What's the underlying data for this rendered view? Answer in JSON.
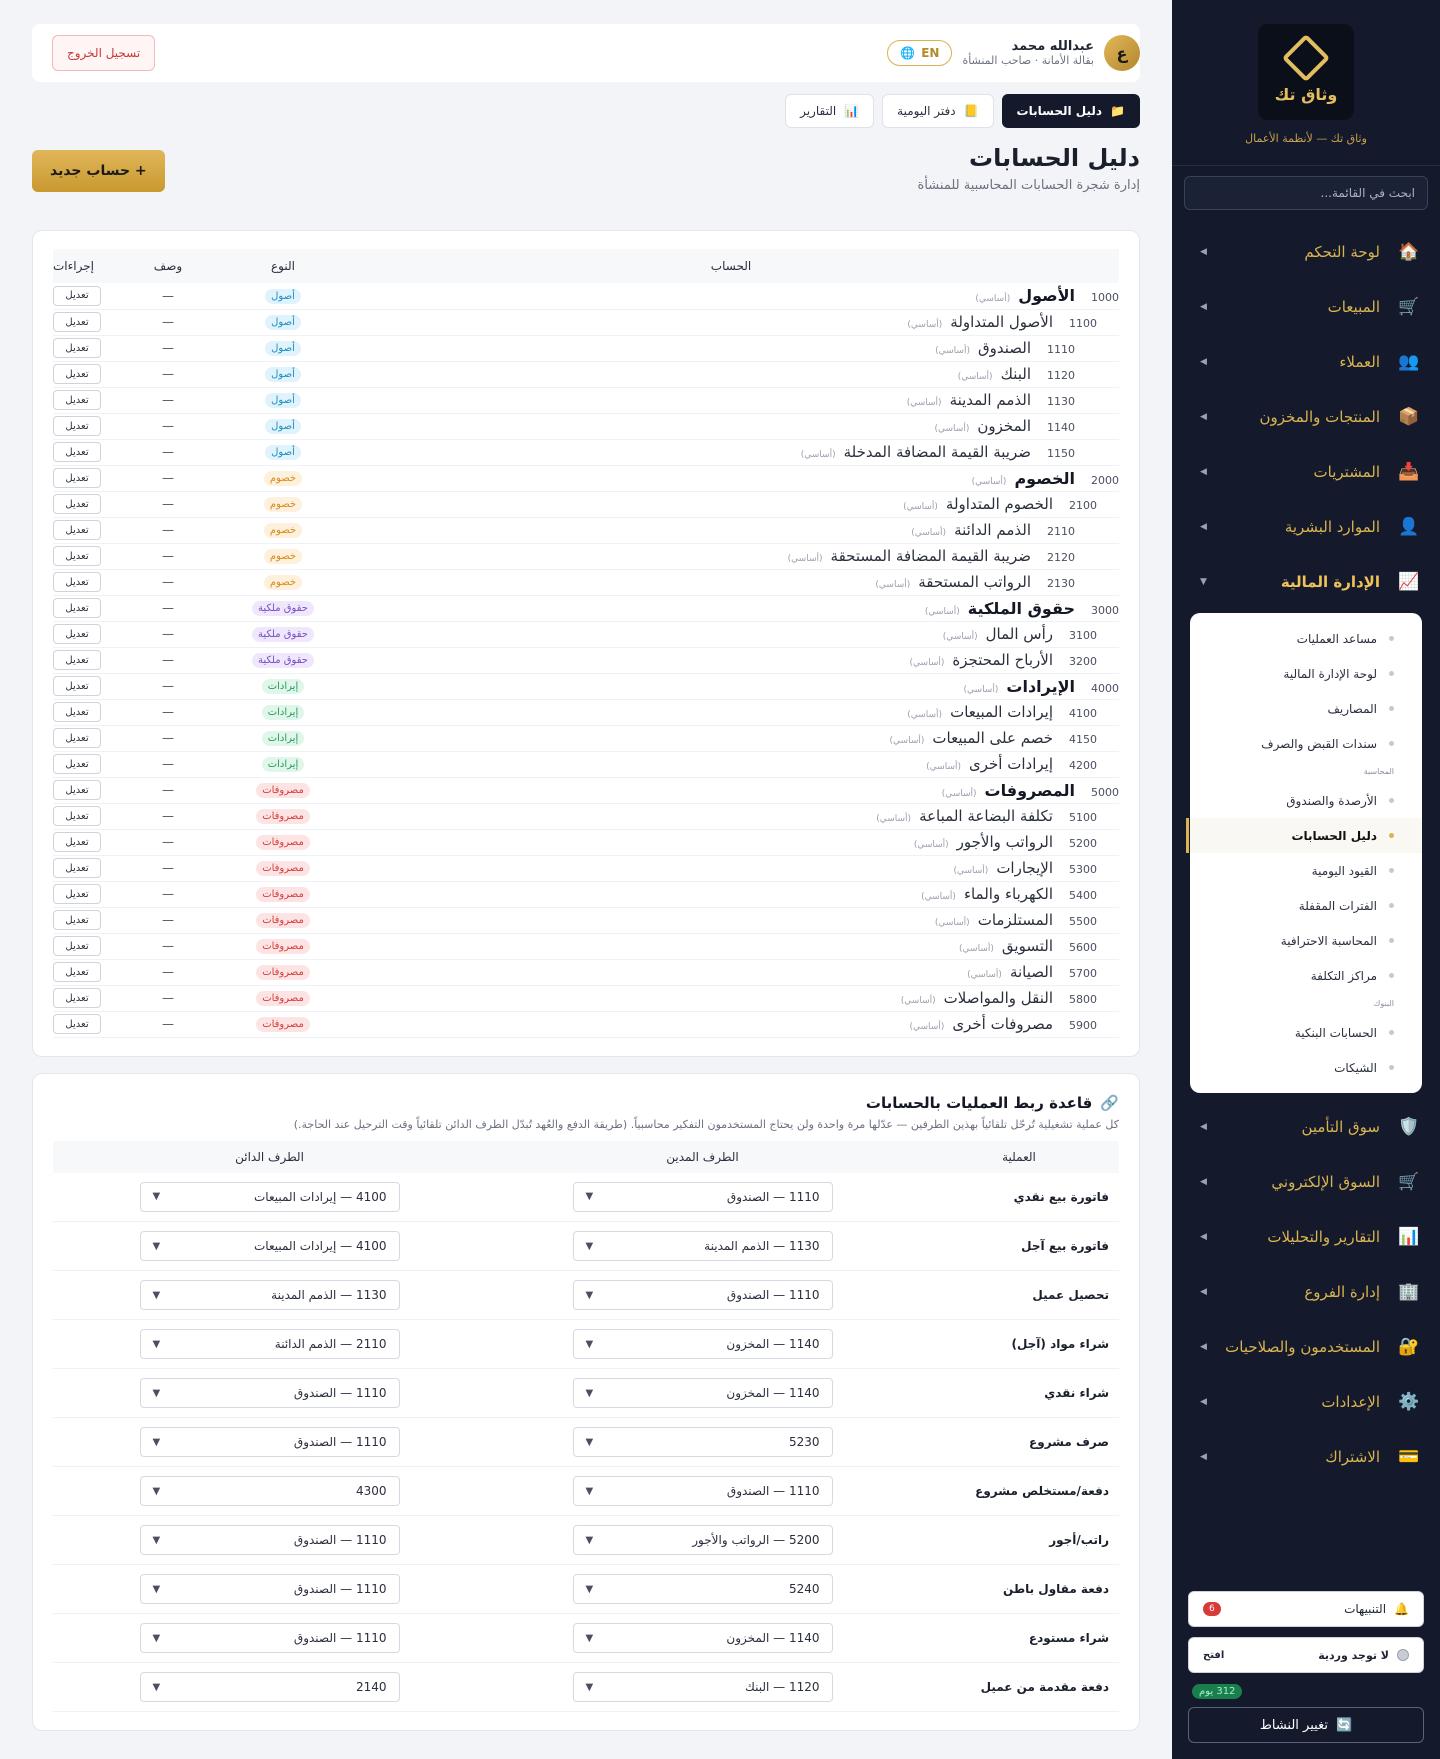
{
  "sidebar": {
    "brand_name": "وثاق تك",
    "brand_tagline": "وثاق تك — لأنظمة الأعمال",
    "search_placeholder": "ابحث في القائمة...",
    "nav_top": [
      {
        "label": "لوحة التحكم",
        "icon": "🏠"
      },
      {
        "label": "المبيعات",
        "icon": "🛒"
      },
      {
        "label": "العملاء",
        "icon": "👥"
      },
      {
        "label": "المنتجات والمخزون",
        "icon": "📦"
      },
      {
        "label": "المشتريات",
        "icon": "📥"
      },
      {
        "label": "الموارد البشرية",
        "icon": "👤"
      }
    ],
    "finance": {
      "label": "الإدارة المالية",
      "icon": "📈"
    },
    "submenu_a": [
      "مساعد العمليات",
      "لوحة الإدارة المالية",
      "المصاريف",
      "سندات القبض والصرف"
    ],
    "group_accounting": "المحاسبة",
    "submenu_b": [
      "الأرصدة والصندوق"
    ],
    "submenu_active": "دليل الحسابات",
    "submenu_c": [
      "القيود اليومية",
      "الفترات المقفلة",
      "المحاسبة الاحترافية",
      "مراكز التكلفة"
    ],
    "group_banks": "البنوك",
    "submenu_d": [
      "الحسابات البنكية",
      "الشيكات"
    ],
    "nav_bottom": [
      {
        "label": "سوق التأمين",
        "icon": "🛡️"
      },
      {
        "label": "السوق الإلكتروني",
        "icon": "🛒"
      },
      {
        "label": "التقارير والتحليلات",
        "icon": "📊"
      },
      {
        "label": "إدارة الفروع",
        "icon": "🏢"
      },
      {
        "label": "المستخدمون والصلاحيات",
        "icon": "🔐"
      },
      {
        "label": "الإعدادات",
        "icon": "⚙️"
      },
      {
        "label": "الاشتراك",
        "icon": "💳"
      }
    ],
    "notifications_label": "التنبيهات",
    "notifications_count": "6",
    "shift_label": "لا توجد وردية",
    "shift_action": "افتح",
    "days_badge": "312 يوم",
    "switch_label": "تغيير النشاط"
  },
  "topbar": {
    "user_initial": "ع",
    "user_name": "عبدالله محمد",
    "user_role": "بقالة الأمانة · صاحب المنشأة",
    "lang": "EN",
    "logout": "تسجيل الخروج"
  },
  "tabs": [
    {
      "label": "التقارير",
      "icon": "📊"
    },
    {
      "label": "دفتر اليومية",
      "icon": "📒"
    },
    {
      "label": "دليل الحسابات",
      "icon": "📁"
    }
  ],
  "page": {
    "title": "دليل الحسابات",
    "subtitle": "إدارة شجرة الحسابات المحاسبية للمنشأة",
    "new_button": "+ حساب جديد"
  },
  "accounts_table": {
    "headers": {
      "account": "الحساب",
      "type": "النوع",
      "desc": "وصف",
      "actions": "إجراءات"
    },
    "base_tag": "(أساسي)",
    "edit_label": "تعديل",
    "rows": [
      {
        "code": "1000",
        "name": "الأصول",
        "level": 0,
        "type": "أصول",
        "kind": "assets",
        "desc": "—"
      },
      {
        "code": "1100",
        "name": "الأصول المتداولة",
        "level": 1,
        "type": "أصول",
        "kind": "assets",
        "desc": "—"
      },
      {
        "code": "1110",
        "name": "الصندوق",
        "level": 2,
        "type": "أصول",
        "kind": "assets",
        "desc": "—"
      },
      {
        "code": "1120",
        "name": "البنك",
        "level": 2,
        "type": "أصول",
        "kind": "assets",
        "desc": "—"
      },
      {
        "code": "1130",
        "name": "الذمم المدينة",
        "level": 2,
        "type": "أصول",
        "kind": "assets",
        "desc": "—"
      },
      {
        "code": "1140",
        "name": "المخزون",
        "level": 2,
        "type": "أصول",
        "kind": "assets",
        "desc": "—"
      },
      {
        "code": "1150",
        "name": "ضريبة القيمة المضافة المدخلة",
        "level": 2,
        "type": "أصول",
        "kind": "assets",
        "desc": "—"
      },
      {
        "code": "2000",
        "name": "الخصوم",
        "level": 0,
        "type": "خصوم",
        "kind": "liab",
        "desc": "—"
      },
      {
        "code": "2100",
        "name": "الخصوم المتداولة",
        "level": 1,
        "type": "خصوم",
        "kind": "liab",
        "desc": "—"
      },
      {
        "code": "2110",
        "name": "الذمم الدائنة",
        "level": 2,
        "type": "خصوم",
        "kind": "liab",
        "desc": "—"
      },
      {
        "code": "2120",
        "name": "ضريبة القيمة المضافة المستحقة",
        "level": 2,
        "type": "خصوم",
        "kind": "liab",
        "desc": "—"
      },
      {
        "code": "2130",
        "name": "الرواتب المستحقة",
        "level": 2,
        "type": "خصوم",
        "kind": "liab",
        "desc": "—"
      },
      {
        "code": "3000",
        "name": "حقوق الملكية",
        "level": 0,
        "type": "حقوق ملكية",
        "kind": "equity",
        "desc": "—"
      },
      {
        "code": "3100",
        "name": "رأس المال",
        "level": 1,
        "type": "حقوق ملكية",
        "kind": "equity",
        "desc": "—"
      },
      {
        "code": "3200",
        "name": "الأرباح المحتجزة",
        "level": 1,
        "type": "حقوق ملكية",
        "kind": "equity",
        "desc": "—"
      },
      {
        "code": "4000",
        "name": "الإيرادات",
        "level": 0,
        "type": "إيرادات",
        "kind": "revenue",
        "desc": "—"
      },
      {
        "code": "4100",
        "name": "إيرادات المبيعات",
        "level": 1,
        "type": "إيرادات",
        "kind": "revenue",
        "desc": "—"
      },
      {
        "code": "4150",
        "name": "خصم على المبيعات",
        "level": 1,
        "type": "إيرادات",
        "kind": "revenue",
        "desc": "—"
      },
      {
        "code": "4200",
        "name": "إيرادات أخرى",
        "level": 1,
        "type": "إيرادات",
        "kind": "revenue",
        "desc": "—"
      },
      {
        "code": "5000",
        "name": "المصروفات",
        "level": 0,
        "type": "مصروفات",
        "kind": "expense",
        "desc": "—"
      },
      {
        "code": "5100",
        "name": "تكلفة البضاعة المباعة",
        "level": 1,
        "type": "مصروفات",
        "kind": "expense",
        "desc": "—"
      },
      {
        "code": "5200",
        "name": "الرواتب والأجور",
        "level": 1,
        "type": "مصروفات",
        "kind": "expense",
        "desc": "—"
      },
      {
        "code": "5300",
        "name": "الإيجارات",
        "level": 1,
        "type": "مصروفات",
        "kind": "expense",
        "desc": "—"
      },
      {
        "code": "5400",
        "name": "الكهرباء والماء",
        "level": 1,
        "type": "مصروفات",
        "kind": "expense",
        "desc": "—"
      },
      {
        "code": "5500",
        "name": "المستلزمات",
        "level": 1,
        "type": "مصروفات",
        "kind": "expense",
        "desc": "—"
      },
      {
        "code": "5600",
        "name": "التسويق",
        "level": 1,
        "type": "مصروفات",
        "kind": "expense",
        "desc": "—"
      },
      {
        "code": "5700",
        "name": "الصيانة",
        "level": 1,
        "type": "مصروفات",
        "kind": "expense",
        "desc": "—"
      },
      {
        "code": "5800",
        "name": "النقل والمواصلات",
        "level": 1,
        "type": "مصروفات",
        "kind": "expense",
        "desc": "—"
      },
      {
        "code": "5900",
        "name": "مصروفات أخرى",
        "level": 1,
        "type": "مصروفات",
        "kind": "expense",
        "desc": "—"
      }
    ]
  },
  "rules": {
    "title": "قاعدة ربط العمليات بالحسابات",
    "subtitle": "كل عملية تشغيلية تُرحّل تلقائياً بهذين الطرفين — عدّلها مرة واحدة ولن يحتاج المستخدمون التفكير محاسبياً. (طريقة الدفع والعُهد تُبدّل الطرف الدائن تلقائياً وقت الترحيل عند الحاجة.)",
    "headers": {
      "op": "العملية",
      "debit": "الطرف المدين",
      "credit": "الطرف الدائن"
    },
    "rows": [
      {
        "op": "فاتورة بيع نقدي",
        "debit": "1110 — الصندوق",
        "credit": "4100 — إيرادات المبيعات"
      },
      {
        "op": "فاتورة بيع آجل",
        "debit": "1130 — الذمم المدينة",
        "credit": "4100 — إيرادات المبيعات"
      },
      {
        "op": "تحصيل عميل",
        "debit": "1110 — الصندوق",
        "credit": "1130 — الذمم المدينة"
      },
      {
        "op": "شراء مواد (آجل)",
        "debit": "1140 — المخزون",
        "credit": "2110 — الذمم الدائنة"
      },
      {
        "op": "شراء نقدي",
        "debit": "1140 — المخزون",
        "credit": "1110 — الصندوق"
      },
      {
        "op": "صرف مشروع",
        "debit": "5230",
        "credit": "1110 — الصندوق"
      },
      {
        "op": "دفعة/مستخلص مشروع",
        "debit": "1110 — الصندوق",
        "credit": "4300"
      },
      {
        "op": "راتب/أجور",
        "debit": "5200 — الرواتب والأجور",
        "credit": "1110 — الصندوق"
      },
      {
        "op": "دفعة مقاول باطن",
        "debit": "5240",
        "credit": "1110 — الصندوق"
      },
      {
        "op": "شراء مستودع",
        "debit": "1140 — المخزون",
        "credit": "1110 — الصندوق"
      },
      {
        "op": "دفعة مقدمة من عميل",
        "debit": "1120 — البنك",
        "credit": "2140"
      }
    ]
  }
}
